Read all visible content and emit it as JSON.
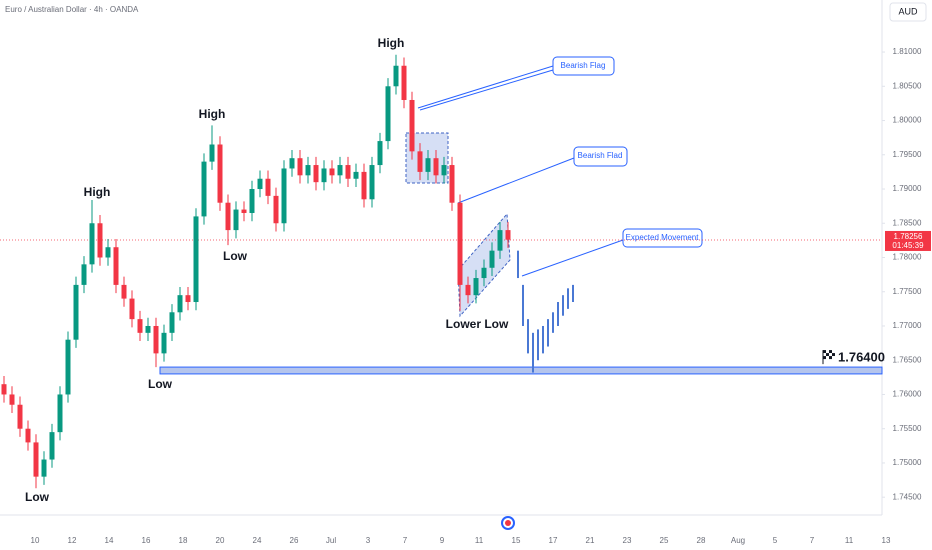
{
  "chart_data": {
    "type": "candlestick",
    "title": "Euro / Australian Dollar · 4h · OANDA",
    "currency": "AUD",
    "up_color": "#089981",
    "down_color": "#f23645",
    "open": [
      1.7615,
      1.76,
      1.7585,
      1.755,
      1.753,
      1.748,
      1.7505,
      1.7545,
      1.76,
      1.768,
      1.776,
      1.779,
      1.785,
      1.78,
      1.7815,
      1.776,
      1.774,
      1.771,
      1.769,
      1.77,
      1.766,
      1.769,
      1.772,
      1.7745,
      1.7735,
      1.786,
      1.794,
      1.7965,
      1.788,
      1.784,
      1.787,
      1.7865,
      1.79,
      1.7915,
      1.789,
      1.785,
      1.793,
      1.7945,
      1.792,
      1.7935,
      1.791,
      1.793,
      1.792,
      1.7935,
      1.7915,
      1.7925,
      1.7885,
      1.7935,
      1.797,
      1.805,
      1.808,
      1.803,
      1.7955,
      1.7925,
      1.7945,
      1.792,
      1.7935,
      1.788,
      1.776,
      1.7745,
      1.777,
      1.7785,
      1.781,
      1.784
    ],
    "high": [
      1.7627,
      1.7612,
      1.7597,
      1.7562,
      1.7542,
      1.7517,
      1.7557,
      1.7612,
      1.7692,
      1.7772,
      1.7802,
      1.7884,
      1.7862,
      1.7827,
      1.7827,
      1.7772,
      1.7752,
      1.7722,
      1.7712,
      1.7712,
      1.7702,
      1.7732,
      1.7757,
      1.7757,
      1.7872,
      1.7952,
      1.7993,
      1.7977,
      1.7892,
      1.7882,
      1.7882,
      1.7912,
      1.7927,
      1.7927,
      1.7902,
      1.7942,
      1.7957,
      1.7957,
      1.7947,
      1.7947,
      1.7942,
      1.7942,
      1.7947,
      1.7947,
      1.7937,
      1.7937,
      1.7947,
      1.7982,
      1.8062,
      1.8096,
      1.8092,
      1.8042,
      1.7967,
      1.7957,
      1.7957,
      1.7947,
      1.7947,
      1.7892,
      1.7772,
      1.7782,
      1.7797,
      1.7822,
      1.7852,
      1.7852
    ],
    "low": [
      1.7588,
      1.7573,
      1.7538,
      1.7518,
      1.7463,
      1.7468,
      1.7493,
      1.7533,
      1.7588,
      1.7668,
      1.7748,
      1.7778,
      1.7788,
      1.7788,
      1.7748,
      1.7728,
      1.7698,
      1.7678,
      1.7678,
      1.764,
      1.7648,
      1.7678,
      1.7708,
      1.7723,
      1.7723,
      1.7848,
      1.7928,
      1.7868,
      1.7818,
      1.7828,
      1.7853,
      1.7853,
      1.7888,
      1.7878,
      1.7838,
      1.7838,
      1.7918,
      1.7908,
      1.7908,
      1.7898,
      1.7898,
      1.7908,
      1.7908,
      1.7903,
      1.7903,
      1.7873,
      1.7873,
      1.7923,
      1.7958,
      1.8038,
      1.8018,
      1.7943,
      1.7913,
      1.7913,
      1.7908,
      1.7908,
      1.7868,
      1.7722,
      1.7733,
      1.7733,
      1.7758,
      1.7773,
      1.7798,
      1.7814
    ],
    "close": [
      1.76,
      1.7585,
      1.755,
      1.753,
      1.748,
      1.7505,
      1.7545,
      1.76,
      1.768,
      1.776,
      1.779,
      1.785,
      1.78,
      1.7815,
      1.776,
      1.774,
      1.771,
      1.769,
      1.77,
      1.766,
      1.769,
      1.772,
      1.7745,
      1.7735,
      1.786,
      1.794,
      1.7965,
      1.788,
      1.784,
      1.787,
      1.7865,
      1.79,
      1.7915,
      1.789,
      1.785,
      1.793,
      1.7945,
      1.792,
      1.7935,
      1.791,
      1.793,
      1.792,
      1.7935,
      1.7915,
      1.7925,
      1.7885,
      1.7935,
      1.797,
      1.805,
      1.808,
      1.803,
      1.7955,
      1.7925,
      1.7945,
      1.792,
      1.7935,
      1.788,
      1.776,
      1.7745,
      1.777,
      1.7785,
      1.781,
      1.784,
      1.7826
    ],
    "projection": {
      "color": "#4a78d4",
      "high": [
        1.781,
        1.776,
        1.771,
        1.769,
        1.7695,
        1.77,
        1.771,
        1.772,
        1.7735,
        1.7745,
        1.7755,
        1.776
      ],
      "low": [
        1.777,
        1.77,
        1.766,
        1.7632,
        1.765,
        1.766,
        1.767,
        1.769,
        1.77,
        1.7715,
        1.7725,
        1.7735
      ]
    },
    "support_zone": [
      1.763,
      1.764
    ],
    "support_label": {
      "value": 1.764,
      "label": "1.76400"
    },
    "last_price": {
      "value": 1.78256,
      "label": "1.78256"
    },
    "countdown": "01:45:39",
    "ylim": [
      1.7424,
      1.8176
    ],
    "yticks": [
      {
        "value": 1.745,
        "label": "1.74500"
      },
      {
        "value": 1.75,
        "label": "1.75000"
      },
      {
        "value": 1.755,
        "label": "1.75500"
      },
      {
        "value": 1.76,
        "label": "1.76000"
      },
      {
        "value": 1.765,
        "label": "1.76500"
      },
      {
        "value": 1.77,
        "label": "1.77000"
      },
      {
        "value": 1.775,
        "label": "1.77500"
      },
      {
        "value": 1.78,
        "label": "1.78000"
      },
      {
        "value": 1.785,
        "label": "1.78500"
      },
      {
        "value": 1.79,
        "label": "1.79000"
      },
      {
        "value": 1.795,
        "label": "1.79500"
      },
      {
        "value": 1.8,
        "label": "1.80000"
      },
      {
        "value": 1.805,
        "label": "1.80500"
      },
      {
        "value": 1.81,
        "label": "1.81000"
      }
    ],
    "x_tick_labels": [
      "10",
      "12",
      "14",
      "16",
      "18",
      "20",
      "24",
      "26",
      "Jul",
      "3",
      "7",
      "9",
      "11",
      "15",
      "17",
      "21",
      "23",
      "25",
      "28",
      "Aug",
      "5",
      "7",
      "11",
      "13"
    ],
    "annotations": [
      "High",
      "High",
      "High",
      "Low",
      "Low",
      "Low",
      "Lower Low",
      "Bearish Flag",
      "Bearish Flad",
      "Expected Movement"
    ]
  }
}
